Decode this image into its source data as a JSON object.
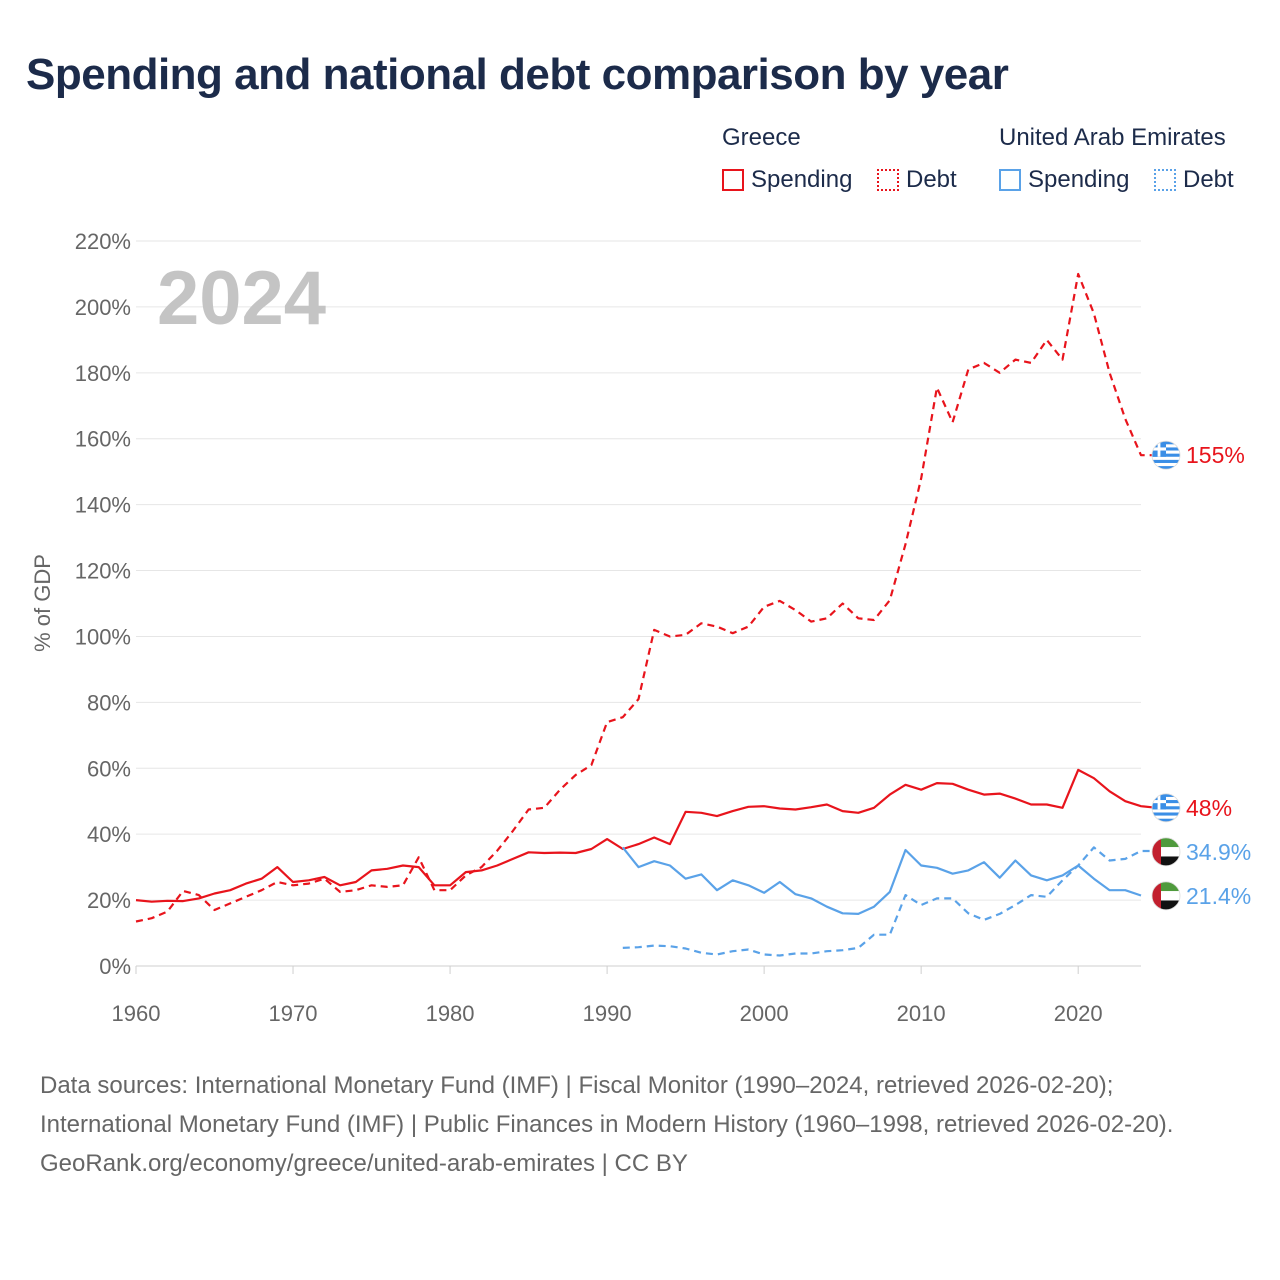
{
  "page": {
    "title": "Spending and national debt comparison by year"
  },
  "legend": {
    "groups": [
      {
        "title": "Greece",
        "items": [
          {
            "label": "Spending",
            "style": "solid",
            "color": "#e8141c"
          },
          {
            "label": "Debt",
            "style": "dotted",
            "color": "#e8141c"
          }
        ]
      },
      {
        "title": "United Arab Emirates",
        "items": [
          {
            "label": "Spending",
            "style": "solid",
            "color": "#5aa2e8"
          },
          {
            "label": "Debt",
            "style": "dotted",
            "color": "#5aa2e8"
          }
        ]
      }
    ]
  },
  "chart_data": {
    "type": "line",
    "year_label": "2024",
    "ylabel": "% of GDP",
    "xlabel": "",
    "xlim": [
      1960,
      2024
    ],
    "ylim": [
      0,
      220
    ],
    "x_ticks": [
      "1960",
      "1970",
      "1980",
      "1990",
      "2000",
      "2010",
      "2020"
    ],
    "y_ticks": [
      "0%",
      "20%",
      "40%",
      "60%",
      "80%",
      "100%",
      "120%",
      "140%",
      "160%",
      "180%",
      "200%",
      "220%"
    ],
    "grid": true,
    "series": [
      {
        "name": "Greece Debt",
        "country": "Greece",
        "metric": "Debt",
        "color": "#e8141c",
        "dash": true,
        "end_label": "155%",
        "start_year": 1960,
        "values": [
          13.5,
          14.5,
          16.5,
          22.8,
          21.5,
          17,
          19,
          21,
          23,
          25.5,
          24.5,
          25,
          26.5,
          22.5,
          23,
          24.5,
          24,
          24.5,
          33,
          23,
          23,
          27.5,
          30,
          35,
          41,
          47.5,
          48,
          53.5,
          58,
          61,
          74,
          75.5,
          81,
          102,
          100,
          100.5,
          104,
          103,
          101,
          103,
          109,
          110.8,
          108,
          104.5,
          105.5,
          110,
          105.5,
          105,
          111,
          128,
          148,
          175.5,
          165,
          181,
          183,
          180,
          184,
          183,
          190,
          184,
          210,
          198,
          180,
          166,
          155,
          155
        ]
      },
      {
        "name": "Greece Spending",
        "country": "Greece",
        "metric": "Spending",
        "color": "#e8141c",
        "dash": false,
        "end_label": "48%",
        "start_year": 1960,
        "values": [
          20,
          19.5,
          19.8,
          19.7,
          20.5,
          22,
          23,
          25,
          26.5,
          30,
          25.5,
          26,
          27,
          24.5,
          25.5,
          29,
          29.5,
          30.5,
          30,
          24.5,
          24.5,
          28.5,
          29,
          30.5,
          32.5,
          34.5,
          34.3,
          34.4,
          34.3,
          35.5,
          38.5,
          35.5,
          37,
          39,
          37,
          46.8,
          46.5,
          45.5,
          47,
          48.3,
          48.5,
          47.8,
          47.5,
          48.2,
          49,
          47,
          46.5,
          48,
          52,
          55,
          53.5,
          55.5,
          55.3,
          53.5,
          52,
          52.3,
          50.8,
          49,
          49,
          48,
          59.5,
          57,
          53,
          50,
          48.5,
          48
        ]
      },
      {
        "name": "United Arab Emirates Spending",
        "country": "United Arab Emirates",
        "metric": "Spending",
        "color": "#5aa2e8",
        "dash": false,
        "end_label": "21.4%",
        "start_year": 1991,
        "values": [
          36,
          30,
          31.8,
          30.5,
          26.5,
          27.8,
          23,
          26,
          24.5,
          22.2,
          25.5,
          21.8,
          20.5,
          18,
          16,
          15.8,
          18,
          22.5,
          35.2,
          30.5,
          29.8,
          28,
          29,
          31.5,
          26.8,
          32,
          27.5,
          26,
          27.5,
          30.5,
          26.5,
          23,
          23,
          21.4
        ]
      },
      {
        "name": "United Arab Emirates Debt",
        "country": "United Arab Emirates",
        "metric": "Debt",
        "color": "#5aa2e8",
        "dash": true,
        "end_label": "34.9%",
        "start_year": 1991,
        "values": [
          5.5,
          5.7,
          6.2,
          6,
          5.3,
          4,
          3.5,
          4.5,
          5,
          3.5,
          3.2,
          3.8,
          3.8,
          4.5,
          4.8,
          5.5,
          9.5,
          9.5,
          21.5,
          18.5,
          20.5,
          20.5,
          16,
          14,
          15.8,
          18.5,
          21.5,
          21,
          26,
          30.5,
          36,
          32,
          32.5,
          34.9,
          34.9
        ]
      }
    ]
  },
  "footer": {
    "sources": "Data sources: International Monetary Fund (IMF) | Fiscal Monitor (1990–2024, retrieved 2026-02-20); International Monetary Fund (IMF) | Public Finances in Modern History (1960–1998, retrieved 2026-02-20).",
    "credit": "GeoRank.org/economy/greece/united-arab-emirates | CC BY"
  }
}
